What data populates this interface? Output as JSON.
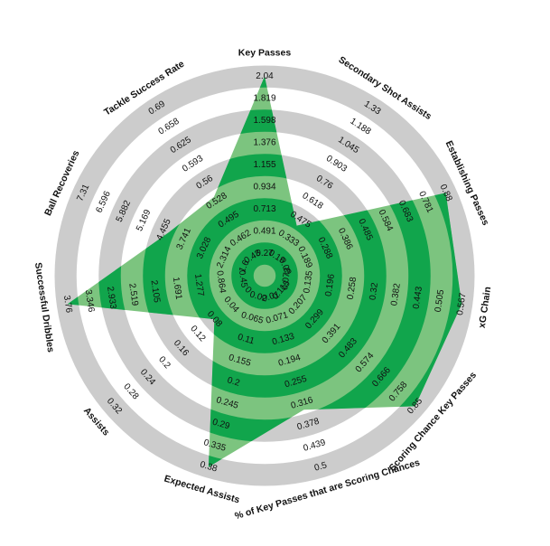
{
  "chart_data": {
    "type": "radar",
    "title": "",
    "grid": true,
    "legend": "none",
    "colors": {
      "ring_gray": "#cccccc",
      "fill_light": "#7cc47f",
      "fill_dark": "#11a54c",
      "tick_text": "#111111"
    },
    "axes": [
      {
        "label": "Key Passes",
        "ticks": [
          "0.27",
          "0.491",
          "0.713",
          "0.934",
          "1.155",
          "1.376",
          "1.598",
          "1.819",
          "2.04"
        ],
        "value": 2.04
      },
      {
        "label": "Secondary Shot Assists",
        "ticks": [
          "0.19",
          "0.333",
          "0.475",
          "0.618",
          "0.76",
          "0.903",
          "1.045",
          "1.188",
          "1.33"
        ],
        "value": 0.43
      },
      {
        "label": "Establishing Passes",
        "ticks": [
          "0.09",
          "0.189",
          "0.288",
          "0.386",
          "0.485",
          "0.584",
          "0.683",
          "0.781",
          "0.88"
        ],
        "value": 0.88
      },
      {
        "label": "xG Chain",
        "ticks": [
          "0.073",
          "0.135",
          "0.196",
          "0.258",
          "0.32",
          "0.382",
          "0.443",
          "0.505",
          "0.567"
        ],
        "value": 0.567
      },
      {
        "label": "Scoring Chance Key Passes",
        "ticks": [
          "0.115",
          "0.207",
          "0.299",
          "0.391",
          "0.483",
          "0.574",
          "0.666",
          "0.758",
          "0.85"
        ],
        "value": 0.85
      },
      {
        "label": "% of Key Passes that are Scoring Chances",
        "ticks": [
          "0.01",
          "0.071",
          "0.133",
          "0.194",
          "0.255",
          "0.316",
          "0.378",
          "0.439",
          "0.5"
        ],
        "value": 0.335
      },
      {
        "label": "Expected Assists",
        "ticks": [
          "0.02",
          "0.065",
          "0.11",
          "0.155",
          "0.2",
          "0.245",
          "0.29",
          "0.335",
          "0.38"
        ],
        "value": 0.38
      },
      {
        "label": "Assists",
        "ticks": [
          "0",
          "0.04",
          "0.08",
          "0.12",
          "0.16",
          "0.2",
          "0.24",
          "0.28",
          "0.32"
        ],
        "value": 0.08
      },
      {
        "label": "Successful Dribbles",
        "ticks": [
          "0.45",
          "0.864",
          "1.277",
          "1.691",
          "2.105",
          "2.519",
          "2.933",
          "3.346",
          "3.76"
        ],
        "value": 3.76
      },
      {
        "label": "Ball Recoveries",
        "ticks": [
          "1.6",
          "2.314",
          "3.028",
          "3.741",
          "4.455",
          "5.169",
          "5.882",
          "6.596",
          "7.31"
        ],
        "value": 4.27
      },
      {
        "label": "Tackle Success Rate",
        "ticks": [
          "0.43",
          "0.462",
          "0.495",
          "0.528",
          "0.56",
          "0.593",
          "0.625",
          "0.658",
          "0.69"
        ],
        "value": 0.535
      }
    ]
  }
}
